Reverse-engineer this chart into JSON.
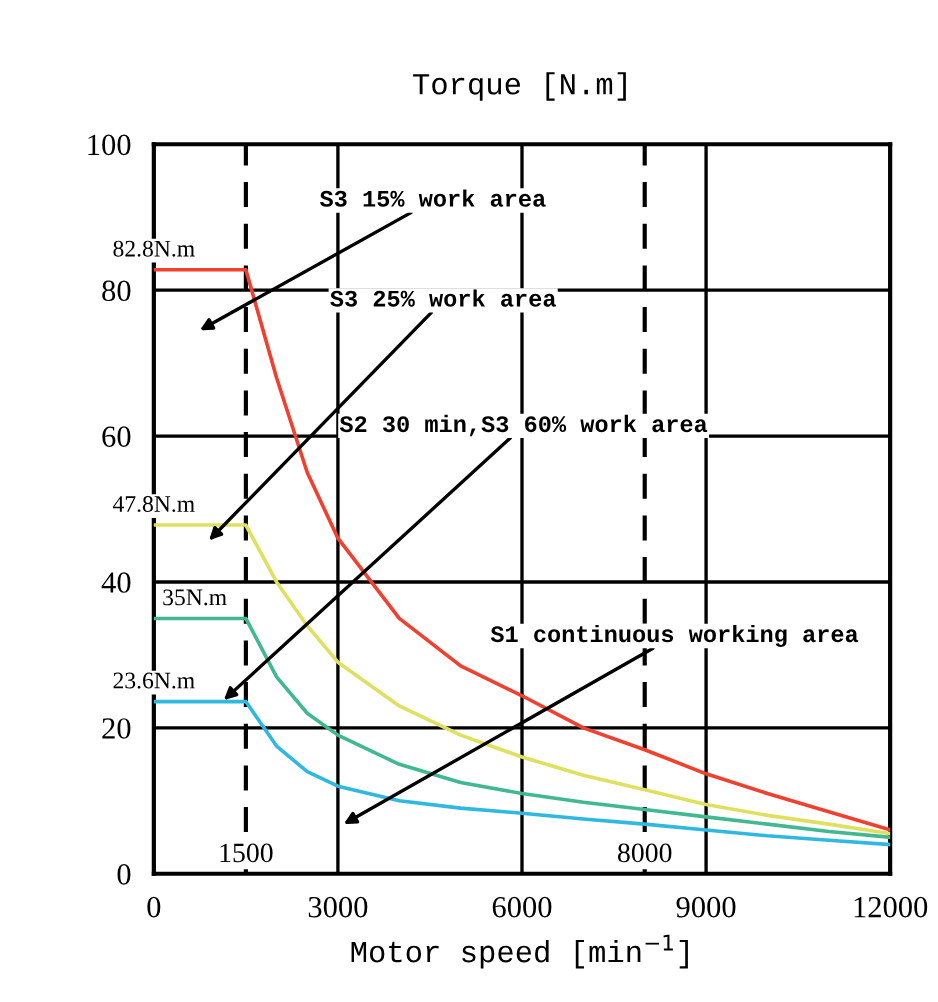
{
  "chart_data": {
    "type": "line",
    "title": "Torque [N.m]",
    "xlabel": "Motor speed [min$^{−1}$]",
    "x": [
      0,
      1500,
      2000,
      2500,
      3000,
      4000,
      5000,
      6000,
      7000,
      8000,
      9000,
      10000,
      11000,
      12000
    ],
    "series": [
      {
        "color": "#f04030",
        "values": [
          82.8,
          82.8,
          68,
          55,
          46,
          35,
          28.5,
          24.4,
          20,
          17,
          13.7,
          11,
          8.5,
          6
        ]
      },
      {
        "color": "#e0e060",
        "values": [
          47.8,
          47.8,
          40,
          34,
          29,
          23,
          19,
          16,
          13.5,
          11.5,
          9.5,
          8,
          6.8,
          5.5
        ]
      },
      {
        "color": "#40b890",
        "values": [
          35,
          35,
          27,
          22,
          19,
          15,
          12.5,
          11,
          9.8,
          8.8,
          7.8,
          6.8,
          5.8,
          5
        ]
      },
      {
        "color": "#30b8e0",
        "values": [
          23.6,
          23.6,
          17.5,
          14,
          12,
          10,
          9,
          8.3,
          7.5,
          6.8,
          6,
          5.2,
          4.6,
          4
        ]
      }
    ],
    "xlim": [
      0,
      12000
    ],
    "ylim": [
      0,
      100
    ],
    "xticks": [
      0,
      3000,
      6000,
      9000,
      12000
    ],
    "yticks": [
      0,
      20,
      40,
      60,
      80,
      100
    ],
    "grid": true,
    "marker": "none",
    "line_style": "solid",
    "ref_lines": [
      {
        "axis": "x",
        "value": 1500,
        "label": "1500",
        "line_style": "dashed"
      },
      {
        "axis": "x",
        "value": 8000,
        "label": "8000",
        "line_style": "dashed"
      }
    ],
    "annotations": [
      "S3 15% work area",
      "S3 25% work area",
      "S2 30 min,S3 60% work area",
      "S1 continuous working area",
      {
        "text": "82.8N.m",
        "y": 82.8
      },
      {
        "text": "47.8N.m",
        "y": 47.8
      },
      {
        "text": "35N.m",
        "y": 35
      },
      {
        "text": "23.6N.m",
        "y": 23.6
      }
    ]
  }
}
